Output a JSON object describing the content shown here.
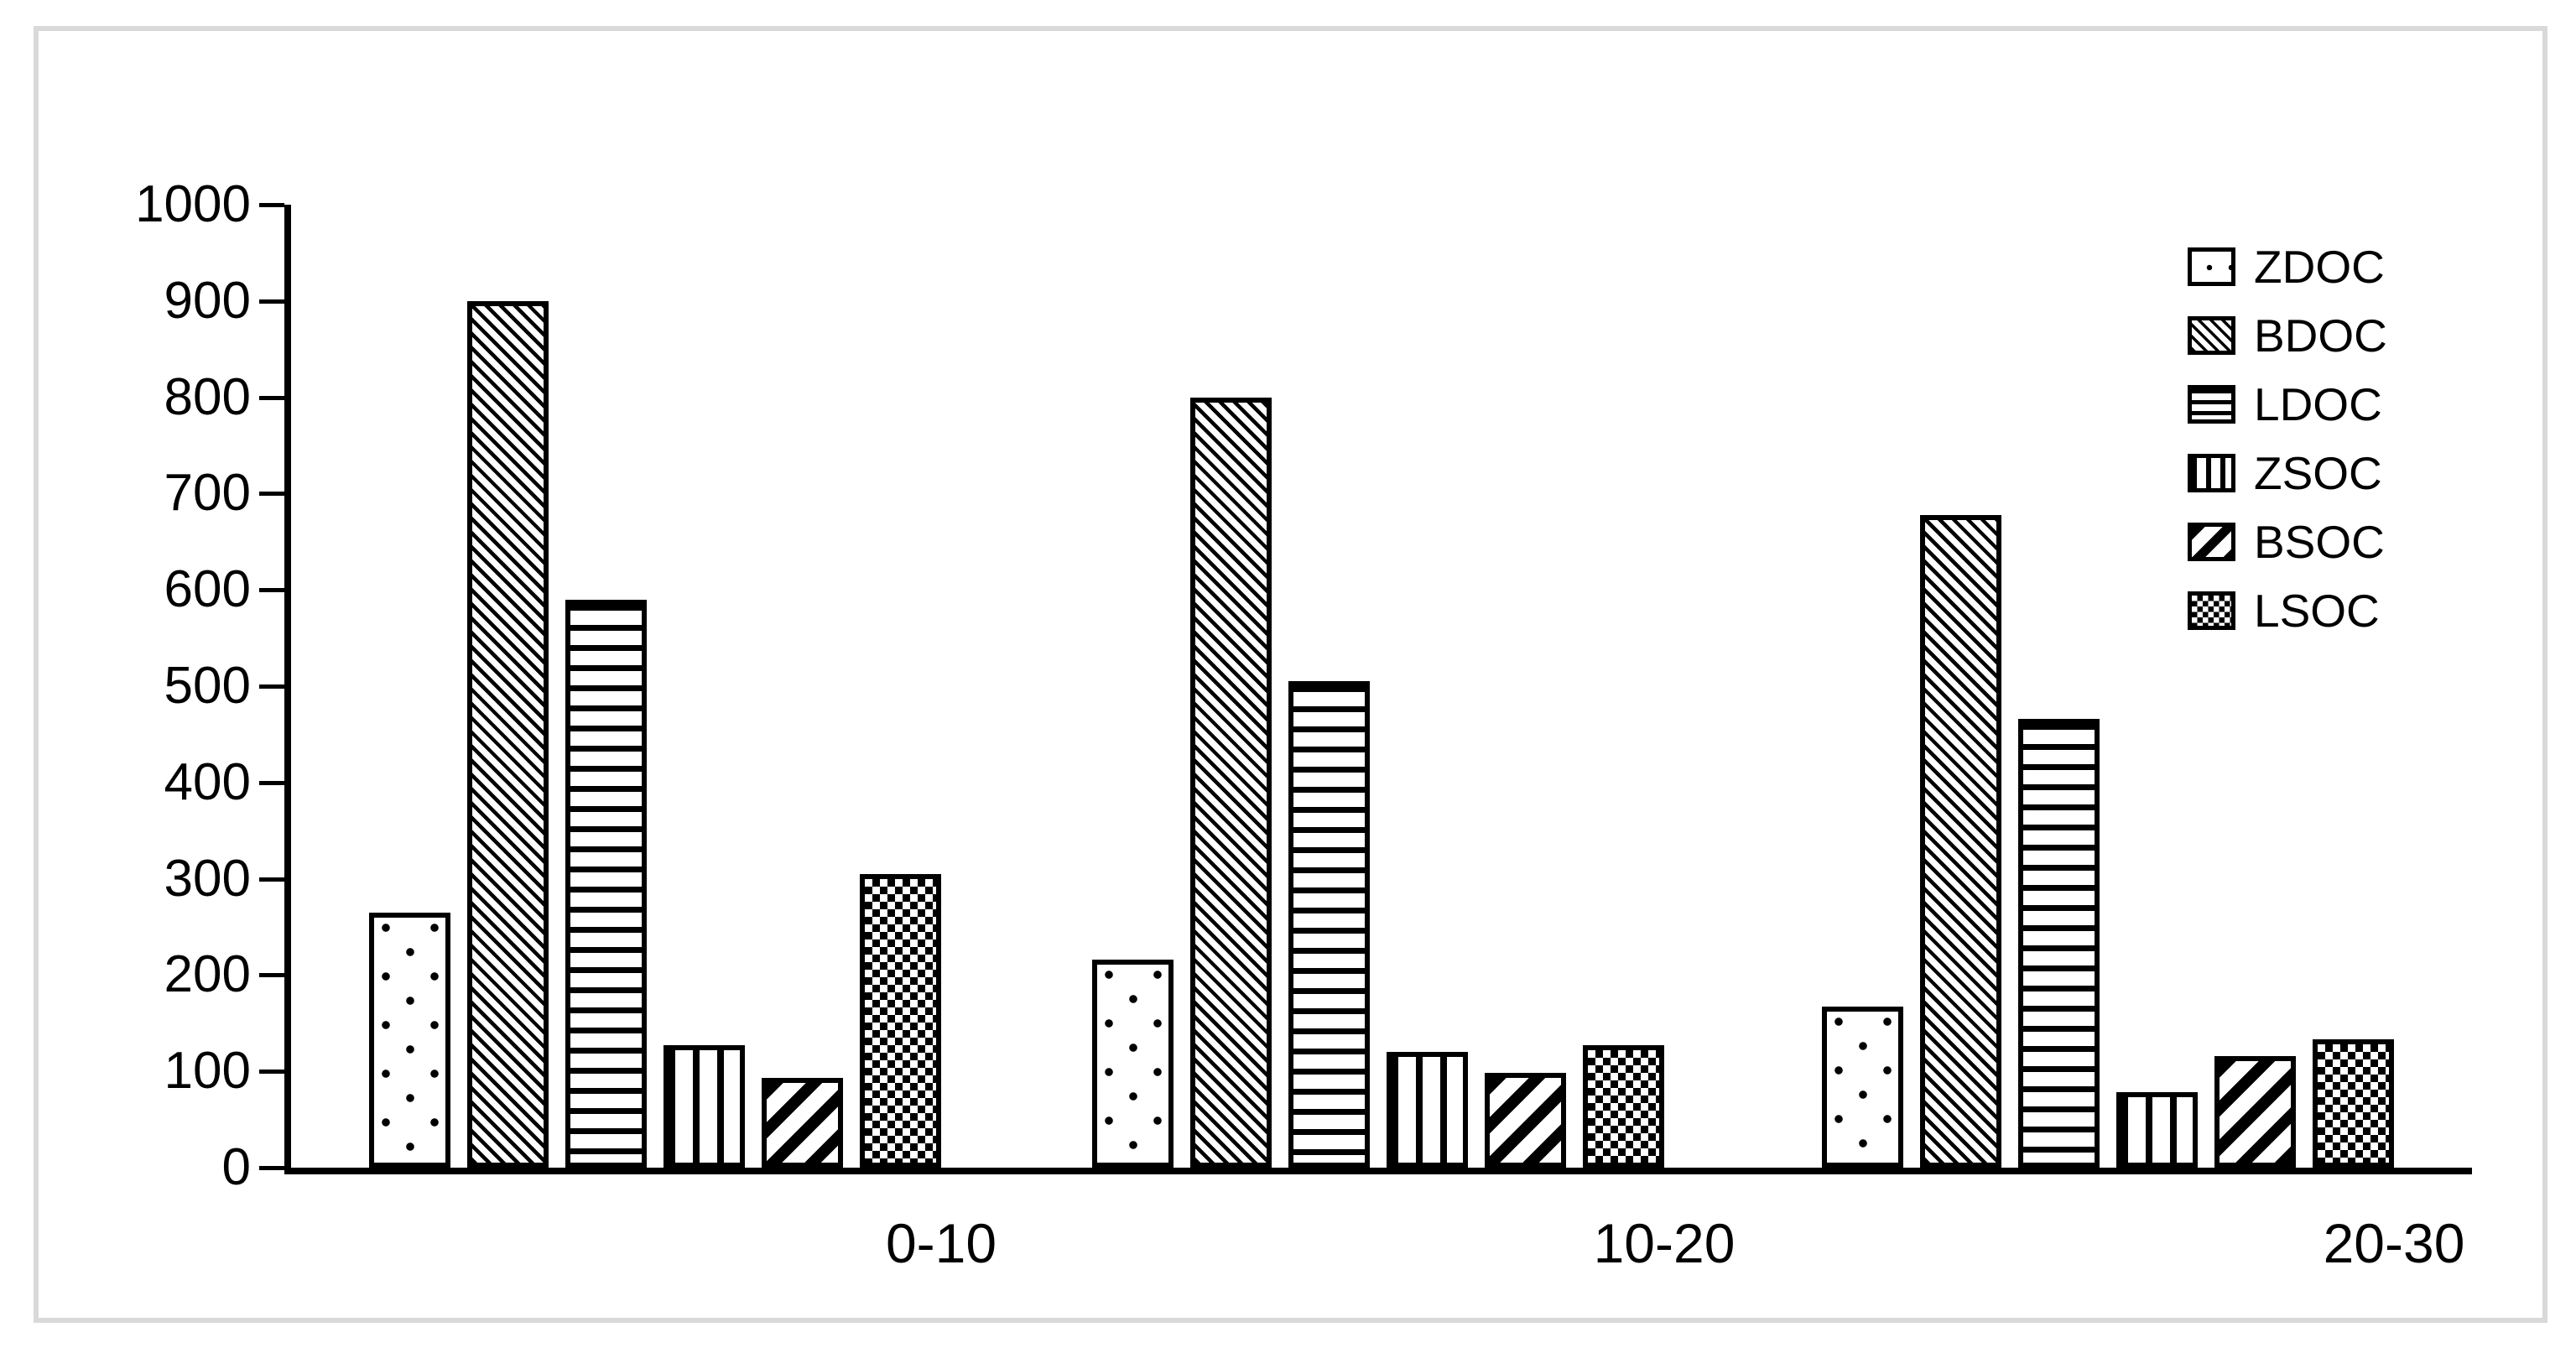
{
  "frame": {
    "background_color": "#ffffff",
    "border_color": "#d9d9d9"
  },
  "chart_data": {
    "type": "bar",
    "title": "",
    "xlabel": "",
    "ylabel": "",
    "categories": [
      "0-10",
      "10-20",
      "20-30"
    ],
    "series": [
      {
        "name": "ZDOC",
        "pattern": "sparse-dots",
        "values": [
          265,
          216,
          167
        ]
      },
      {
        "name": "BDOC",
        "pattern": "thin-diagonal-down",
        "values": [
          900,
          800,
          678
        ]
      },
      {
        "name": "LDOC",
        "pattern": "horizontal-lines",
        "values": [
          590,
          505,
          466
        ]
      },
      {
        "name": "ZSOC",
        "pattern": "vertical-lines",
        "values": [
          127,
          120,
          78
        ]
      },
      {
        "name": "BSOC",
        "pattern": "thick-diagonal-up",
        "values": [
          93,
          98,
          116
        ]
      },
      {
        "name": "LSOC",
        "pattern": "checkerboard",
        "values": [
          305,
          127,
          133
        ]
      }
    ],
    "ylim": [
      0,
      1000
    ],
    "ytick_interval": 100,
    "ytick_labels": [
      "1000",
      "900",
      "800",
      "700",
      "600",
      "500",
      "400",
      "300",
      "200",
      "100",
      "0"
    ],
    "grid": false,
    "legend_position": "upper-right",
    "legend_labels": [
      "ZDOC",
      "BDOC",
      "LDOC",
      "ZSOC",
      "BSOC",
      "LSOC"
    ],
    "bar_fill_color": "#000000",
    "bar_background_color": "#ffffff"
  }
}
